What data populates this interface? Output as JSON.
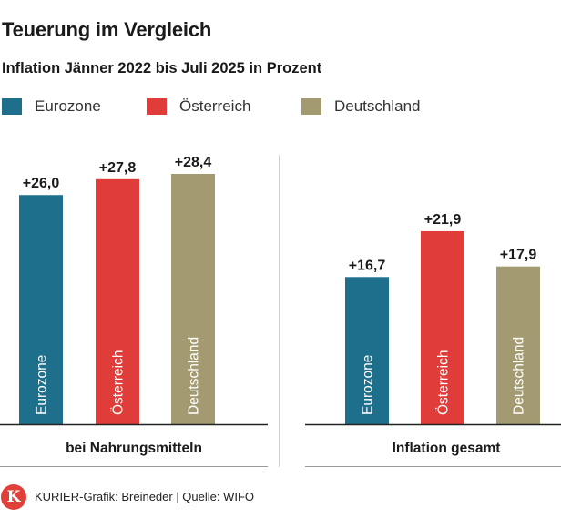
{
  "chart_data": {
    "type": "bar",
    "title": "Teuerung im Vergleich",
    "subtitle": "Inflation Jänner 2022 bis Juli 2025 in Prozent",
    "series_names": [
      "Eurozone",
      "Österreich",
      "Deutschland"
    ],
    "colors": {
      "Eurozone": "#1e6f8c",
      "Österreich": "#e03c39",
      "Deutschland": "#a39a72"
    },
    "groups": [
      {
        "name": "bei Nahrungsmitteln",
        "values": [
          26.0,
          27.8,
          28.4
        ],
        "labels": [
          "+26,0",
          "+27,8",
          "+28,4"
        ]
      },
      {
        "name": "Inflation gesamt",
        "values": [
          16.7,
          21.9,
          17.9
        ],
        "labels": [
          "+16,7",
          "+21,9",
          "+17,9"
        ]
      }
    ],
    "ylim": [
      0,
      28.4
    ]
  },
  "footer": {
    "logo_letter": "K",
    "source": "KURIER-Grafik: Breineder | Quelle: WIFO"
  }
}
